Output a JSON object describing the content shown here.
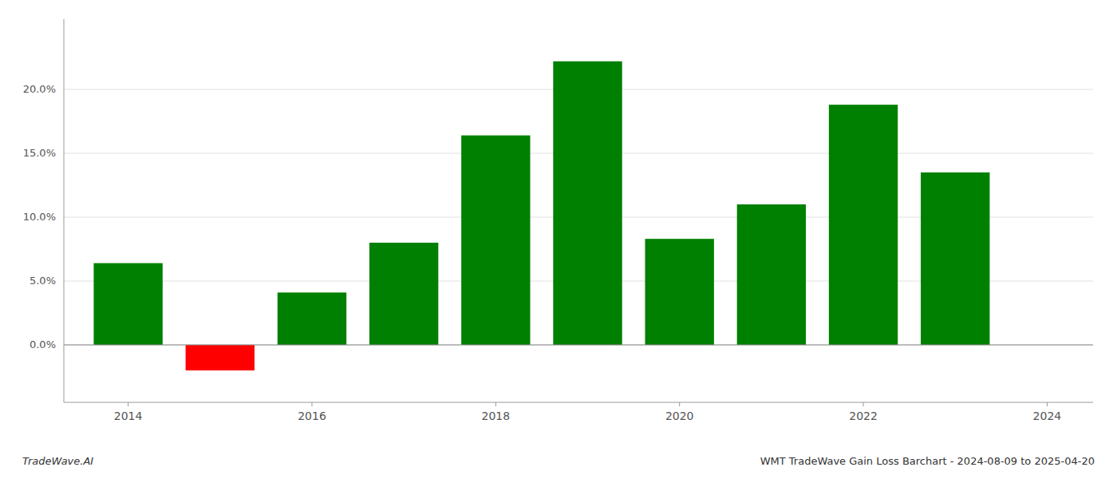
{
  "chart_data": {
    "type": "bar",
    "title": "WMT TradeWave Gain Loss Barchart - 2024-08-09 to 2025-04-20",
    "annotations": [
      "TradeWave.AI"
    ],
    "x": [
      2014,
      2015,
      2016,
      2017,
      2018,
      2019,
      2020,
      2021,
      2022,
      2023
    ],
    "values": [
      0.064,
      -0.02,
      0.041,
      0.08,
      0.164,
      0.222,
      0.083,
      0.11,
      0.188,
      0.135
    ],
    "colors": [
      "#008000",
      "#ff0000",
      "#008000",
      "#008000",
      "#008000",
      "#008000",
      "#008000",
      "#008000",
      "#008000",
      "#008000"
    ],
    "xlim": [
      2013.3,
      2024.5
    ],
    "xticks": [
      2014,
      2016,
      2018,
      2020,
      2022,
      2024
    ],
    "ylim": [
      -0.045,
      0.255
    ],
    "yticks": [
      {
        "value": 0.0,
        "label": "0.0%"
      },
      {
        "value": 0.05,
        "label": "5.0%"
      },
      {
        "value": 0.1,
        "label": "10.0%"
      },
      {
        "value": 0.15,
        "label": "15.0%"
      },
      {
        "value": 0.2,
        "label": "20.0%"
      }
    ],
    "grid": true
  }
}
